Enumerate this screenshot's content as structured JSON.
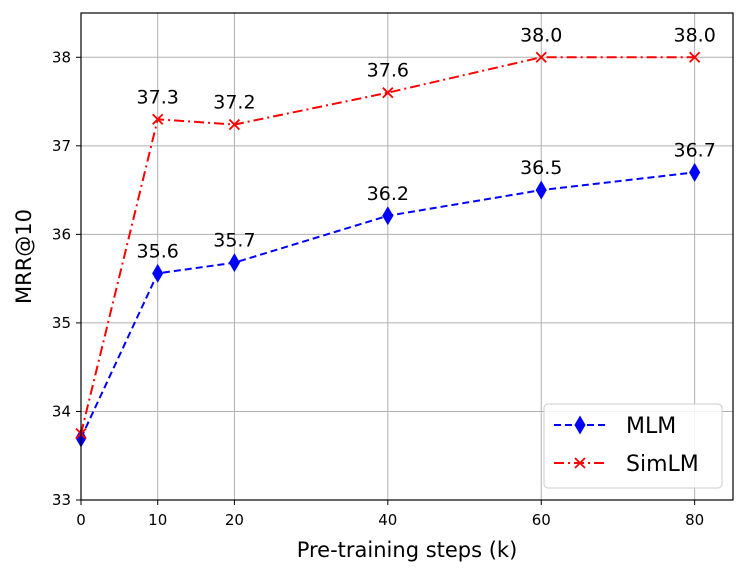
{
  "chart_data": {
    "type": "line",
    "title": "",
    "xlabel": "Pre-training steps (k)",
    "ylabel": "MRR@10",
    "x": [
      0,
      10,
      20,
      40,
      60,
      80
    ],
    "xlim": [
      0,
      85
    ],
    "ylim": [
      33,
      38.5
    ],
    "xticks": [
      0,
      10,
      20,
      40,
      60,
      80
    ],
    "yticks": [
      33,
      34,
      35,
      36,
      37,
      38
    ],
    "grid": true,
    "legend_position": "lower-right",
    "series": [
      {
        "name": "MLM",
        "values": [
          33.7,
          35.56,
          35.68,
          36.21,
          36.5,
          36.7
        ],
        "labels": [
          "",
          "35.6",
          "35.7",
          "36.2",
          "36.5",
          "36.7"
        ],
        "color": "#0000ff",
        "linestyle": "dashed",
        "marker": "diamond"
      },
      {
        "name": "SimLM",
        "values": [
          33.75,
          37.3,
          37.24,
          37.6,
          38.0,
          38.0
        ],
        "labels": [
          "",
          "37.3",
          "37.2",
          "37.6",
          "38.0",
          "38.0"
        ],
        "color": "#ff0000",
        "linestyle": "dashdot",
        "marker": "x"
      }
    ]
  }
}
